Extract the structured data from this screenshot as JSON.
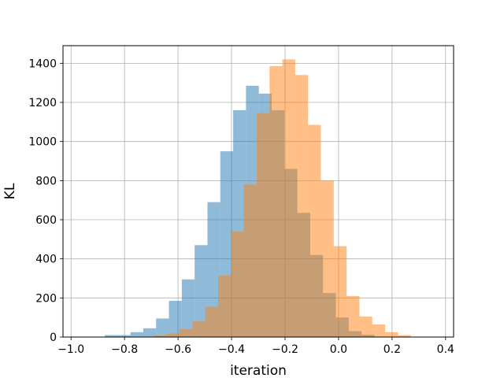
{
  "chart_data": {
    "type": "bar",
    "title": "",
    "xlabel": "iteration",
    "ylabel": "KL",
    "xlim": [
      -1.03,
      0.43
    ],
    "ylim": [
      0,
      1490
    ],
    "xticks": [
      -1.0,
      -0.8,
      -0.6,
      -0.4,
      -0.2,
      0.0,
      0.2,
      0.4
    ],
    "xtick_labels": [
      "−1.0",
      "−0.8",
      "−0.6",
      "−0.4",
      "−0.2",
      "0.0",
      "0.2",
      "0.4"
    ],
    "yticks": [
      0,
      200,
      400,
      600,
      800,
      1000,
      1200,
      1400
    ],
    "ytick_labels": [
      "0",
      "200",
      "400",
      "600",
      "800",
      "1000",
      "1200",
      "1400"
    ],
    "grid": true,
    "bar_alpha": 0.5,
    "series": [
      {
        "color": "#1f77b4",
        "bins": [
          {
            "x0": -0.874,
            "x1": -0.826,
            "count": 10
          },
          {
            "x0": -0.826,
            "x1": -0.778,
            "count": 10
          },
          {
            "x0": -0.778,
            "x1": -0.73,
            "count": 25
          },
          {
            "x0": -0.73,
            "x1": -0.682,
            "count": 45
          },
          {
            "x0": -0.682,
            "x1": -0.634,
            "count": 95
          },
          {
            "x0": -0.634,
            "x1": -0.586,
            "count": 185
          },
          {
            "x0": -0.586,
            "x1": -0.538,
            "count": 295
          },
          {
            "x0": -0.538,
            "x1": -0.49,
            "count": 470
          },
          {
            "x0": -0.49,
            "x1": -0.442,
            "count": 690
          },
          {
            "x0": -0.442,
            "x1": -0.394,
            "count": 950
          },
          {
            "x0": -0.394,
            "x1": -0.346,
            "count": 1160
          },
          {
            "x0": -0.346,
            "x1": -0.298,
            "count": 1285
          },
          {
            "x0": -0.298,
            "x1": -0.25,
            "count": 1245
          },
          {
            "x0": -0.25,
            "x1": -0.202,
            "count": 1160
          },
          {
            "x0": -0.202,
            "x1": -0.154,
            "count": 860
          },
          {
            "x0": -0.154,
            "x1": -0.106,
            "count": 635
          },
          {
            "x0": -0.106,
            "x1": -0.058,
            "count": 420
          },
          {
            "x0": -0.058,
            "x1": -0.01,
            "count": 225
          },
          {
            "x0": -0.01,
            "x1": 0.038,
            "count": 100
          },
          {
            "x0": 0.038,
            "x1": 0.086,
            "count": 30
          },
          {
            "x0": 0.086,
            "x1": 0.134,
            "count": 12
          }
        ]
      },
      {
        "color": "#ff7f0e",
        "bins": [
          {
            "x0": -0.738,
            "x1": -0.69,
            "count": 2
          },
          {
            "x0": -0.69,
            "x1": -0.642,
            "count": 8
          },
          {
            "x0": -0.642,
            "x1": -0.594,
            "count": 18
          },
          {
            "x0": -0.594,
            "x1": -0.546,
            "count": 40
          },
          {
            "x0": -0.546,
            "x1": -0.498,
            "count": 80
          },
          {
            "x0": -0.498,
            "x1": -0.45,
            "count": 155
          },
          {
            "x0": -0.45,
            "x1": -0.402,
            "count": 315
          },
          {
            "x0": -0.402,
            "x1": -0.354,
            "count": 540
          },
          {
            "x0": -0.354,
            "x1": -0.306,
            "count": 780
          },
          {
            "x0": -0.306,
            "x1": -0.258,
            "count": 1145
          },
          {
            "x0": -0.258,
            "x1": -0.21,
            "count": 1385
          },
          {
            "x0": -0.21,
            "x1": -0.162,
            "count": 1420
          },
          {
            "x0": -0.162,
            "x1": -0.114,
            "count": 1340
          },
          {
            "x0": -0.114,
            "x1": -0.066,
            "count": 1085
          },
          {
            "x0": -0.066,
            "x1": -0.018,
            "count": 800
          },
          {
            "x0": -0.018,
            "x1": 0.03,
            "count": 465
          },
          {
            "x0": 0.03,
            "x1": 0.078,
            "count": 210
          },
          {
            "x0": 0.078,
            "x1": 0.126,
            "count": 105
          },
          {
            "x0": 0.126,
            "x1": 0.174,
            "count": 65
          },
          {
            "x0": 0.174,
            "x1": 0.222,
            "count": 25
          },
          {
            "x0": 0.222,
            "x1": 0.27,
            "count": 10
          }
        ]
      }
    ]
  }
}
